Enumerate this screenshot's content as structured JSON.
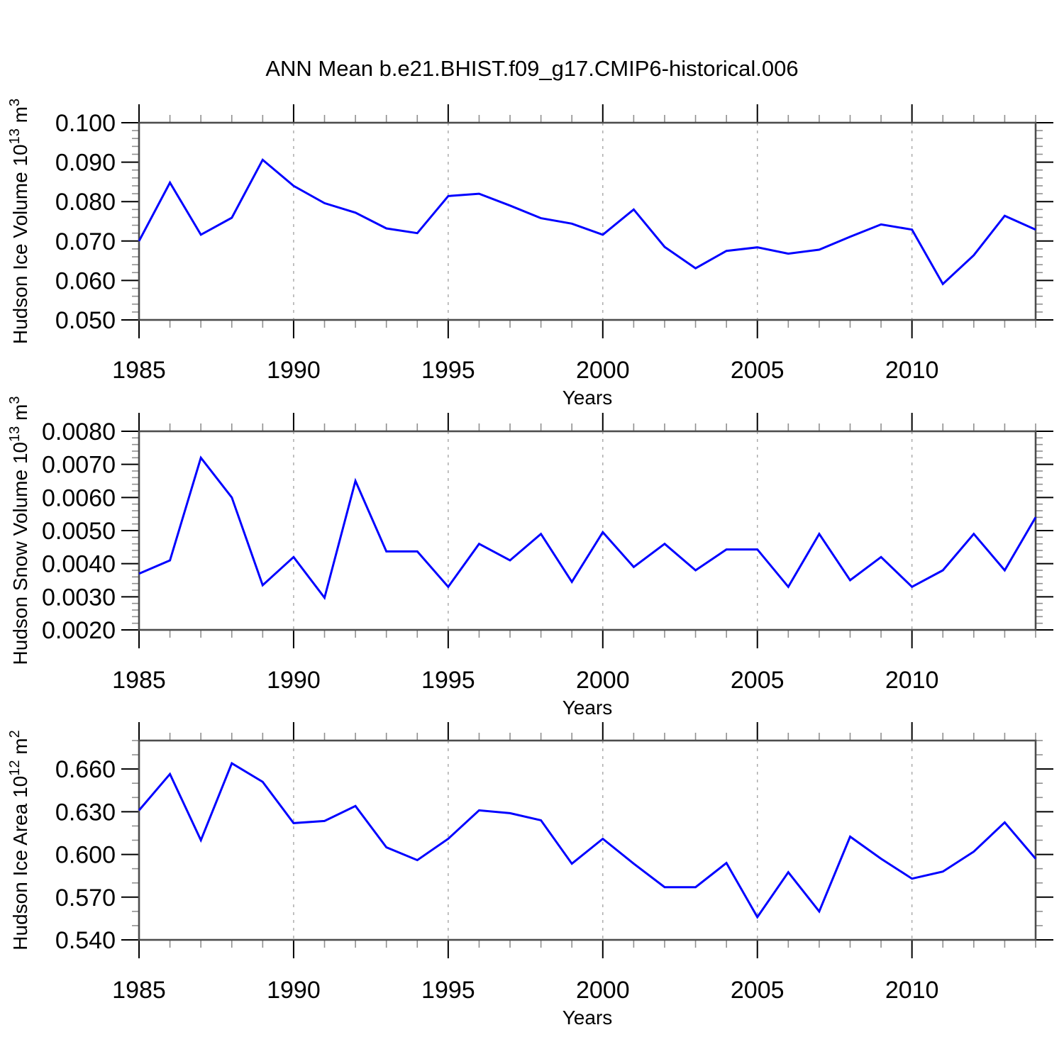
{
  "title": "ANN Mean b.e21.BHIST.f09_g17.CMIP6-historical.006",
  "colors": {
    "line": "#0000ff",
    "frame": "#4d4d4d",
    "major_tick": "#000000",
    "minor_tick": "#8f8f8f",
    "gridline": "#a6a6a6",
    "text": "#000000",
    "background": "#ffffff"
  },
  "x_axis": {
    "label": "Years",
    "years": [
      1985,
      1986,
      1987,
      1988,
      1989,
      1990,
      1991,
      1992,
      1993,
      1994,
      1995,
      1996,
      1997,
      1998,
      1999,
      2000,
      2001,
      2002,
      2003,
      2004,
      2005,
      2006,
      2007,
      2008,
      2009,
      2010,
      2011,
      2012,
      2013,
      2014
    ],
    "range": [
      1985,
      2014
    ],
    "major_tick_years": [
      1985,
      1990,
      1995,
      2000,
      2005,
      2010
    ],
    "major_tick_labels": [
      "1985",
      "1990",
      "1995",
      "2000",
      "2005",
      "2010"
    ],
    "gridline_years": [
      1990,
      1995,
      2000,
      2005,
      2010
    ],
    "minor_step": 1,
    "grid": "vertical-dashed"
  },
  "chart_data": [
    {
      "type": "line",
      "series_name": "Hudson Ice Volume",
      "ylabel_text": "Hudson Ice Volume 10^13 m^3",
      "ylabel_parts": [
        {
          "t": "Hudson Ice Volume 10"
        },
        {
          "t": "13",
          "sup": true
        },
        {
          "t": " m"
        },
        {
          "t": "3",
          "sup": true
        }
      ],
      "xlabel": "Years",
      "ylim": [
        0.05,
        0.1
      ],
      "yticks": [
        {
          "v": 0.1,
          "label": "0.100"
        },
        {
          "v": 0.09,
          "label": "0.090"
        },
        {
          "v": 0.08,
          "label": "0.080"
        },
        {
          "v": 0.07,
          "label": "0.070"
        },
        {
          "v": 0.06,
          "label": "0.060"
        },
        {
          "v": 0.05,
          "label": "0.050"
        }
      ],
      "y_minor_step": 0.002,
      "values": [
        0.07,
        0.0848,
        0.0716,
        0.0759,
        0.0906,
        0.084,
        0.0796,
        0.0772,
        0.0732,
        0.072,
        0.0814,
        0.082,
        0.079,
        0.0758,
        0.0744,
        0.0716,
        0.078,
        0.0685,
        0.0631,
        0.0675,
        0.0684,
        0.0668,
        0.0678,
        0.0711,
        0.0742,
        0.0729,
        0.0591,
        0.0664,
        0.0764,
        0.0729
      ]
    },
    {
      "type": "line",
      "series_name": "Hudson Snow Volume",
      "ylabel_text": "Hudson Snow Volume 10^13 m^3",
      "ylabel_parts": [
        {
          "t": "Hudson Snow Volume 10"
        },
        {
          "t": "13",
          "sup": true
        },
        {
          "t": " m"
        },
        {
          "t": "3",
          "sup": true
        }
      ],
      "xlabel": "Years",
      "ylim": [
        0.002,
        0.008
      ],
      "yticks": [
        {
          "v": 0.008,
          "label": "0.0080"
        },
        {
          "v": 0.007,
          "label": "0.0070"
        },
        {
          "v": 0.006,
          "label": "0.0060"
        },
        {
          "v": 0.005,
          "label": "0.0050"
        },
        {
          "v": 0.004,
          "label": "0.0040"
        },
        {
          "v": 0.003,
          "label": "0.0030"
        },
        {
          "v": 0.002,
          "label": "0.0020"
        }
      ],
      "y_minor_step": 0.0002,
      "values": [
        0.0037,
        0.0041,
        0.0072,
        0.006,
        0.00335,
        0.0042,
        0.00297,
        0.0065,
        0.00437,
        0.00437,
        0.0033,
        0.0046,
        0.0041,
        0.0049,
        0.00345,
        0.00495,
        0.0039,
        0.0046,
        0.0038,
        0.00443,
        0.00443,
        0.0033,
        0.0049,
        0.0035,
        0.0042,
        0.0033,
        0.0038,
        0.0049,
        0.0038,
        0.0054
      ]
    },
    {
      "type": "line",
      "series_name": "Hudson Ice Area",
      "ylabel_text": "Hudson Ice Area 10^12 m^2",
      "ylabel_parts": [
        {
          "t": "Hudson Ice Area 10"
        },
        {
          "t": "12",
          "sup": true
        },
        {
          "t": " m"
        },
        {
          "t": "2",
          "sup": true
        }
      ],
      "xlabel": "Years",
      "ylim": [
        0.54,
        0.68
      ],
      "yticks": [
        {
          "v": 0.66,
          "label": "0.660"
        },
        {
          "v": 0.63,
          "label": "0.630"
        },
        {
          "v": 0.6,
          "label": "0.600"
        },
        {
          "v": 0.57,
          "label": "0.570"
        },
        {
          "v": 0.54,
          "label": "0.540"
        }
      ],
      "y_minor_step": 0.01,
      "values": [
        0.631,
        0.6565,
        0.61,
        0.664,
        0.651,
        0.622,
        0.6235,
        0.634,
        0.605,
        0.596,
        0.611,
        0.631,
        0.629,
        0.624,
        0.5935,
        0.611,
        0.5935,
        0.577,
        0.577,
        0.594,
        0.556,
        0.5875,
        0.56,
        0.6125,
        0.597,
        0.583,
        0.588,
        0.602,
        0.6225,
        0.597
      ]
    }
  ]
}
